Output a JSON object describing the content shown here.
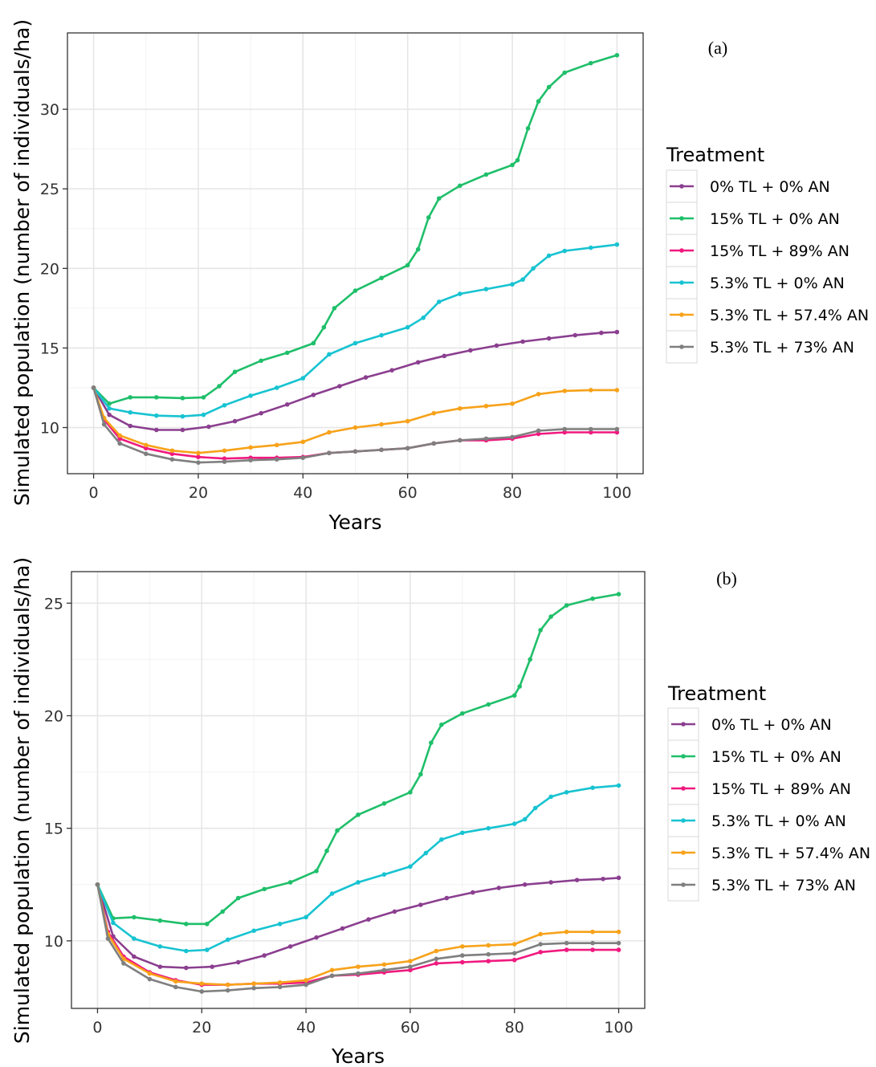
{
  "colors": {
    "0% TL + 0% AN": "#8b3f8f",
    "15% TL + 0% AN": "#1fbf6a",
    "15% TL + 89% AN": "#f0197f",
    "5.3% TL + 0% AN": "#17c3d1",
    "5.3% TL + 57.4% AN": "#f7a21a",
    "5.3% TL + 73% AN": "#7f7f7f"
  },
  "chart_data": [
    {
      "type": "line",
      "panel_label": "(a)",
      "xlabel": "Years",
      "ylabel": "Simulated population (number of individuals/ha)",
      "xlim": [
        -5,
        105
      ],
      "ylim": [
        7.1,
        34.8
      ],
      "x_ticks": [
        0,
        20,
        40,
        60,
        80,
        100
      ],
      "y_ticks": [
        10,
        15,
        20,
        25,
        30
      ],
      "grid": true,
      "legend_title": "Treatment",
      "legend_position": "right",
      "series": [
        {
          "name": "0% TL + 0% AN",
          "x": [
            0,
            3,
            7,
            12,
            17,
            22,
            27,
            32,
            37,
            42,
            47,
            52,
            57,
            62,
            67,
            72,
            77,
            82,
            87,
            92,
            97,
            100
          ],
          "y": [
            12.5,
            10.8,
            10.1,
            9.85,
            9.85,
            10.05,
            10.4,
            10.9,
            11.45,
            12.05,
            12.6,
            13.15,
            13.6,
            14.1,
            14.5,
            14.85,
            15.15,
            15.4,
            15.6,
            15.8,
            15.95,
            16.0
          ]
        },
        {
          "name": "15% TL + 0% AN",
          "x": [
            0,
            3,
            7,
            12,
            17,
            21,
            24,
            27,
            32,
            37,
            42,
            44,
            46,
            50,
            55,
            60,
            62,
            64,
            66,
            70,
            75,
            80,
            81,
            83,
            85,
            87,
            90,
            95,
            100
          ],
          "y": [
            12.5,
            11.5,
            11.9,
            11.9,
            11.85,
            11.9,
            12.6,
            13.5,
            14.2,
            14.7,
            15.3,
            16.3,
            17.5,
            18.6,
            19.4,
            20.2,
            21.2,
            23.2,
            24.4,
            25.2,
            25.9,
            26.5,
            26.8,
            28.8,
            30.5,
            31.4,
            32.3,
            32.9,
            33.4
          ]
        },
        {
          "name": "15% TL + 89% AN",
          "x": [
            0,
            2,
            5,
            10,
            15,
            20,
            25,
            30,
            35,
            40,
            45,
            50,
            55,
            60,
            65,
            70,
            75,
            80,
            85,
            90,
            95,
            100
          ],
          "y": [
            12.5,
            10.5,
            9.3,
            8.7,
            8.35,
            8.15,
            8.05,
            8.1,
            8.1,
            8.15,
            8.4,
            8.5,
            8.6,
            8.7,
            9.0,
            9.2,
            9.2,
            9.3,
            9.6,
            9.7,
            9.7,
            9.7
          ]
        },
        {
          "name": "5.3% TL + 0% AN",
          "x": [
            0,
            3,
            7,
            12,
            17,
            21,
            25,
            30,
            35,
            40,
            45,
            50,
            55,
            60,
            63,
            66,
            70,
            75,
            80,
            82,
            84,
            87,
            90,
            95,
            100
          ],
          "y": [
            12.5,
            11.2,
            10.95,
            10.75,
            10.7,
            10.8,
            11.4,
            12.0,
            12.5,
            13.1,
            14.6,
            15.3,
            15.8,
            16.3,
            16.9,
            17.9,
            18.4,
            18.7,
            19.0,
            19.3,
            20.0,
            20.8,
            21.1,
            21.3,
            21.5
          ]
        },
        {
          "name": "5.3% TL + 57.4% AN",
          "x": [
            0,
            2,
            5,
            10,
            15,
            20,
            25,
            30,
            35,
            40,
            45,
            50,
            55,
            60,
            65,
            70,
            75,
            80,
            85,
            90,
            95,
            100
          ],
          "y": [
            12.5,
            10.6,
            9.5,
            8.9,
            8.55,
            8.4,
            8.55,
            8.75,
            8.9,
            9.1,
            9.7,
            10.0,
            10.2,
            10.4,
            10.9,
            11.2,
            11.35,
            11.5,
            12.1,
            12.3,
            12.35,
            12.35
          ]
        },
        {
          "name": "5.3% TL + 73% AN",
          "x": [
            0,
            2,
            5,
            10,
            15,
            20,
            25,
            30,
            35,
            40,
            45,
            50,
            55,
            60,
            65,
            70,
            75,
            80,
            85,
            90,
            95,
            100
          ],
          "y": [
            12.5,
            10.2,
            9.0,
            8.35,
            8.0,
            7.8,
            7.85,
            7.95,
            8.0,
            8.1,
            8.4,
            8.5,
            8.6,
            8.7,
            9.0,
            9.2,
            9.3,
            9.4,
            9.8,
            9.9,
            9.9,
            9.9
          ]
        }
      ]
    },
    {
      "type": "line",
      "panel_label": "(b)",
      "xlabel": "Years",
      "ylabel": "Simulated population (number of individuals/ha)",
      "xlim": [
        -5,
        105
      ],
      "ylim": [
        7.0,
        26.4
      ],
      "x_ticks": [
        0,
        20,
        40,
        60,
        80,
        100
      ],
      "y_ticks": [
        10,
        15,
        20,
        25
      ],
      "grid": true,
      "legend_title": "Treatment",
      "legend_position": "right",
      "series": [
        {
          "name": "0% TL + 0% AN",
          "x": [
            0,
            3,
            7,
            12,
            17,
            22,
            27,
            32,
            37,
            42,
            47,
            52,
            57,
            62,
            67,
            72,
            77,
            82,
            87,
            92,
            97,
            100
          ],
          "y": [
            12.5,
            10.2,
            9.3,
            8.85,
            8.8,
            8.85,
            9.05,
            9.35,
            9.75,
            10.15,
            10.55,
            10.95,
            11.3,
            11.6,
            11.9,
            12.15,
            12.35,
            12.5,
            12.6,
            12.7,
            12.75,
            12.8
          ]
        },
        {
          "name": "15% TL + 0% AN",
          "x": [
            0,
            3,
            7,
            12,
            17,
            21,
            24,
            27,
            32,
            37,
            42,
            44,
            46,
            50,
            55,
            60,
            62,
            64,
            66,
            70,
            75,
            80,
            81,
            83,
            85,
            87,
            90,
            95,
            100
          ],
          "y": [
            12.5,
            11.0,
            11.05,
            10.9,
            10.75,
            10.75,
            11.3,
            11.9,
            12.3,
            12.6,
            13.1,
            14.0,
            14.9,
            15.6,
            16.1,
            16.6,
            17.4,
            18.8,
            19.6,
            20.1,
            20.5,
            20.9,
            21.3,
            22.5,
            23.8,
            24.4,
            24.9,
            25.2,
            25.4
          ]
        },
        {
          "name": "15% TL + 89% AN",
          "x": [
            0,
            2,
            5,
            10,
            15,
            20,
            25,
            30,
            35,
            40,
            45,
            50,
            55,
            60,
            65,
            70,
            75,
            80,
            85,
            90,
            95,
            100
          ],
          "y": [
            12.5,
            10.4,
            9.3,
            8.6,
            8.25,
            8.05,
            8.05,
            8.1,
            8.1,
            8.15,
            8.45,
            8.5,
            8.6,
            8.7,
            9.0,
            9.05,
            9.1,
            9.15,
            9.5,
            9.6,
            9.6,
            9.6
          ]
        },
        {
          "name": "5.3% TL + 0% AN",
          "x": [
            0,
            3,
            7,
            12,
            17,
            21,
            25,
            30,
            35,
            40,
            45,
            50,
            55,
            60,
            63,
            66,
            70,
            75,
            80,
            82,
            84,
            87,
            90,
            95,
            100
          ],
          "y": [
            12.5,
            10.8,
            10.1,
            9.75,
            9.55,
            9.6,
            10.05,
            10.45,
            10.75,
            11.05,
            12.1,
            12.6,
            12.95,
            13.3,
            13.9,
            14.5,
            14.8,
            15.0,
            15.2,
            15.4,
            15.9,
            16.4,
            16.6,
            16.8,
            16.9
          ]
        },
        {
          "name": "5.3% TL + 57.4% AN",
          "x": [
            0,
            2,
            5,
            10,
            15,
            20,
            25,
            30,
            35,
            40,
            45,
            50,
            55,
            60,
            65,
            70,
            75,
            80,
            85,
            90,
            95,
            100
          ],
          "y": [
            12.5,
            10.3,
            9.2,
            8.55,
            8.2,
            8.1,
            8.05,
            8.1,
            8.15,
            8.25,
            8.7,
            8.85,
            8.95,
            9.1,
            9.55,
            9.75,
            9.8,
            9.85,
            10.3,
            10.4,
            10.4,
            10.4
          ]
        },
        {
          "name": "5.3% TL + 73% AN",
          "x": [
            0,
            2,
            5,
            10,
            15,
            20,
            25,
            30,
            35,
            40,
            45,
            50,
            55,
            60,
            65,
            70,
            75,
            80,
            85,
            90,
            95,
            100
          ],
          "y": [
            12.5,
            10.1,
            9.0,
            8.3,
            7.95,
            7.75,
            7.8,
            7.9,
            7.95,
            8.05,
            8.45,
            8.55,
            8.7,
            8.85,
            9.2,
            9.35,
            9.4,
            9.45,
            9.85,
            9.9,
            9.9,
            9.9
          ]
        }
      ]
    }
  ]
}
